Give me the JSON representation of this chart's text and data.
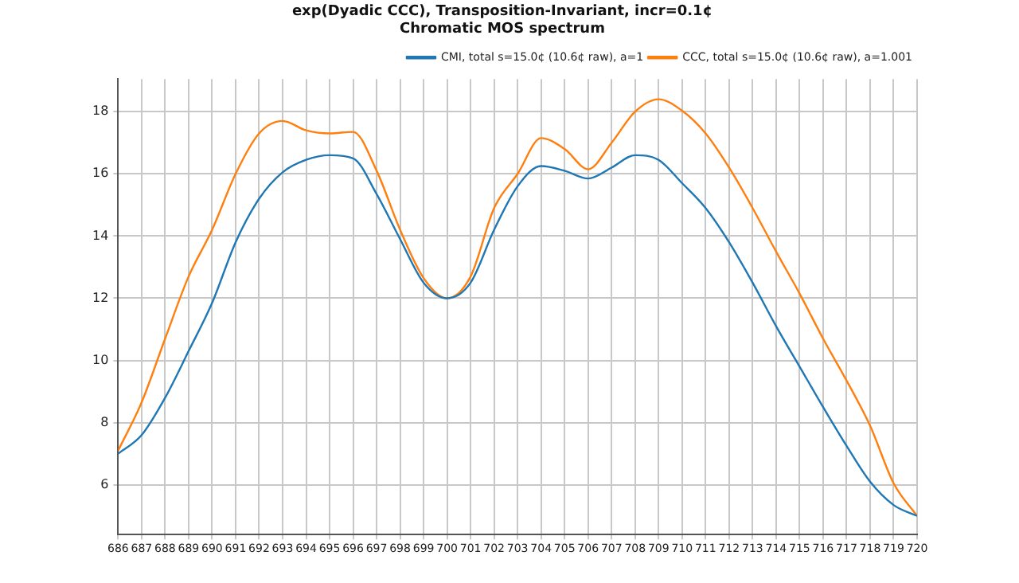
{
  "chart_data": {
    "type": "line",
    "title": [
      "exp(Dyadic CCC), Transposition-Invariant, incr=0.1¢",
      "Chromatic MOS spectrum"
    ],
    "x": [
      686,
      687,
      688,
      689,
      690,
      691,
      692,
      693,
      694,
      695,
      696,
      697,
      698,
      699,
      700,
      701,
      702,
      703,
      704,
      705,
      706,
      707,
      708,
      709,
      710,
      711,
      712,
      713,
      714,
      715,
      716,
      717,
      718,
      719,
      720
    ],
    "series": [
      {
        "name": "CMI, total s=15.0¢ (10.6¢ raw), a=1",
        "color": "#1f77b4",
        "values": [
          7.0,
          7.6,
          8.8,
          10.3,
          11.85,
          13.8,
          15.2,
          16.05,
          16.45,
          16.6,
          16.5,
          15.35,
          13.9,
          12.5,
          12.0,
          12.5,
          14.2,
          15.6,
          16.25,
          16.1,
          15.85,
          16.2,
          16.6,
          16.45,
          15.7,
          14.9,
          13.8,
          12.5,
          11.1,
          9.8,
          8.5,
          7.25,
          6.1,
          5.35,
          5.0
        ]
      },
      {
        "name": "CCC, total s=15.0¢ (10.6¢ raw), a=1.001",
        "color": "#ff7f0e",
        "values": [
          7.1,
          8.65,
          10.7,
          12.7,
          14.2,
          16.0,
          17.3,
          17.7,
          17.4,
          17.3,
          17.35,
          16.1,
          14.2,
          12.65,
          12.0,
          12.7,
          14.9,
          16.0,
          17.15,
          16.8,
          16.15,
          17.0,
          18.0,
          18.4,
          18.03,
          17.3,
          16.2,
          14.9,
          13.5,
          12.15,
          10.7,
          9.35,
          7.9,
          6.05,
          5.0
        ]
      }
    ],
    "xlim": [
      686,
      720
    ],
    "xticks": [
      686,
      687,
      688,
      689,
      690,
      691,
      692,
      693,
      694,
      695,
      696,
      697,
      698,
      699,
      700,
      701,
      702,
      703,
      704,
      705,
      706,
      707,
      708,
      709,
      710,
      711,
      712,
      713,
      714,
      715,
      716,
      717,
      718,
      719,
      720
    ],
    "ylim": [
      4.4,
      19.05
    ],
    "yticks": [
      6,
      8,
      10,
      12,
      14,
      16,
      18
    ],
    "grid": true,
    "legend": "top right",
    "marker": "none",
    "line_style": "solid"
  }
}
